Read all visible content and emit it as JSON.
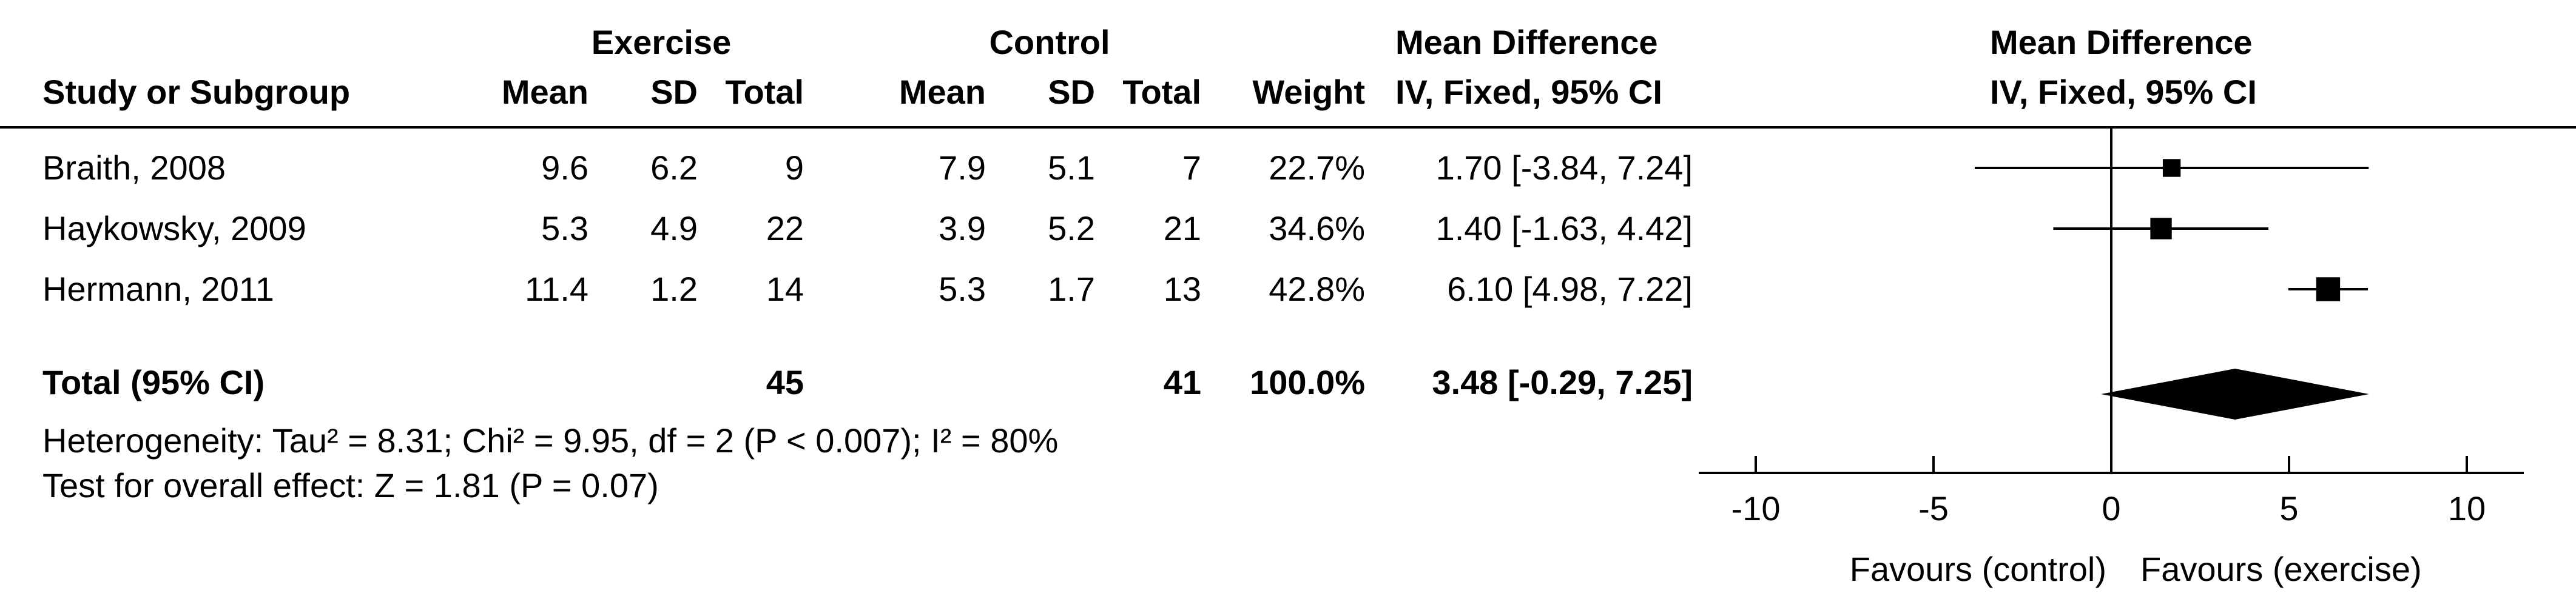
{
  "header": {
    "group1_label": "Exercise",
    "group2_label": "Control",
    "col_study": "Study or Subgroup",
    "col_mean1": "Mean",
    "col_sd1": "SD",
    "col_total1": "Total",
    "col_mean2": "Mean",
    "col_sd2": "SD",
    "col_total2": "Total",
    "col_weight": "Weight",
    "col_md_line1": "Mean Difference",
    "col_md_line2": "IV, Fixed, 95% CI",
    "plot_line1": "Mean Difference",
    "plot_line2": "IV, Fixed, 95% CI"
  },
  "studies": [
    {
      "name": "Braith, 2008",
      "mean1": "9.6",
      "sd1": "6.2",
      "total1": "9",
      "mean2": "7.9",
      "sd2": "5.1",
      "total2": "7",
      "weight": "22.7%",
      "ci": "1.70 [-3.84, 7.24]"
    },
    {
      "name": "Haykowsky, 2009",
      "mean1": "5.3",
      "sd1": "4.9",
      "total1": "22",
      "mean2": "3.9",
      "sd2": "5.2",
      "total2": "21",
      "weight": "34.6%",
      "ci": "1.40 [-1.63, 4.42]"
    },
    {
      "name": "Hermann, 2011",
      "mean1": "11.4",
      "sd1": "1.2",
      "total1": "14",
      "mean2": "5.3",
      "sd2": "1.7",
      "total2": "13",
      "weight": "42.8%",
      "ci": "6.10 [4.98, 7.22]"
    }
  ],
  "total": {
    "name": "Total (95% CI)",
    "total1": "45",
    "total2": "41",
    "weight": "100.0%",
    "ci": "3.48 [-0.29, 7.25]"
  },
  "heterogeneity": "Heterogeneity: Tau² = 8.31; Chi² = 9.95, df = 2 (P < 0.007); I² = 80%",
  "overall_effect": "Test for overall effect: Z = 1.81 (P = 0.07)",
  "chart_data": {
    "type": "scatter",
    "subtype": "forest-plot",
    "xlim": [
      -10,
      10
    ],
    "x_ticks": [
      -10,
      -5,
      0,
      5,
      10
    ],
    "x_tick_labels": [
      "-10",
      "-5",
      "0",
      "5",
      "10"
    ],
    "favours_left": "Favours (control)",
    "favours_right": "Favours (exercise)",
    "points": [
      {
        "label": "Braith, 2008",
        "estimate": 1.7,
        "lower": -3.84,
        "upper": 7.24,
        "weight": 22.7
      },
      {
        "label": "Haykowsky, 2009",
        "estimate": 1.4,
        "lower": -1.63,
        "upper": 4.42,
        "weight": 34.6
      },
      {
        "label": "Hermann, 2011",
        "estimate": 6.1,
        "lower": 4.98,
        "upper": 7.22,
        "weight": 42.8
      }
    ],
    "pooled": {
      "label": "Total (95% CI)",
      "estimate": 3.48,
      "lower": -0.29,
      "upper": 7.25
    },
    "marker_color": "#000000"
  }
}
